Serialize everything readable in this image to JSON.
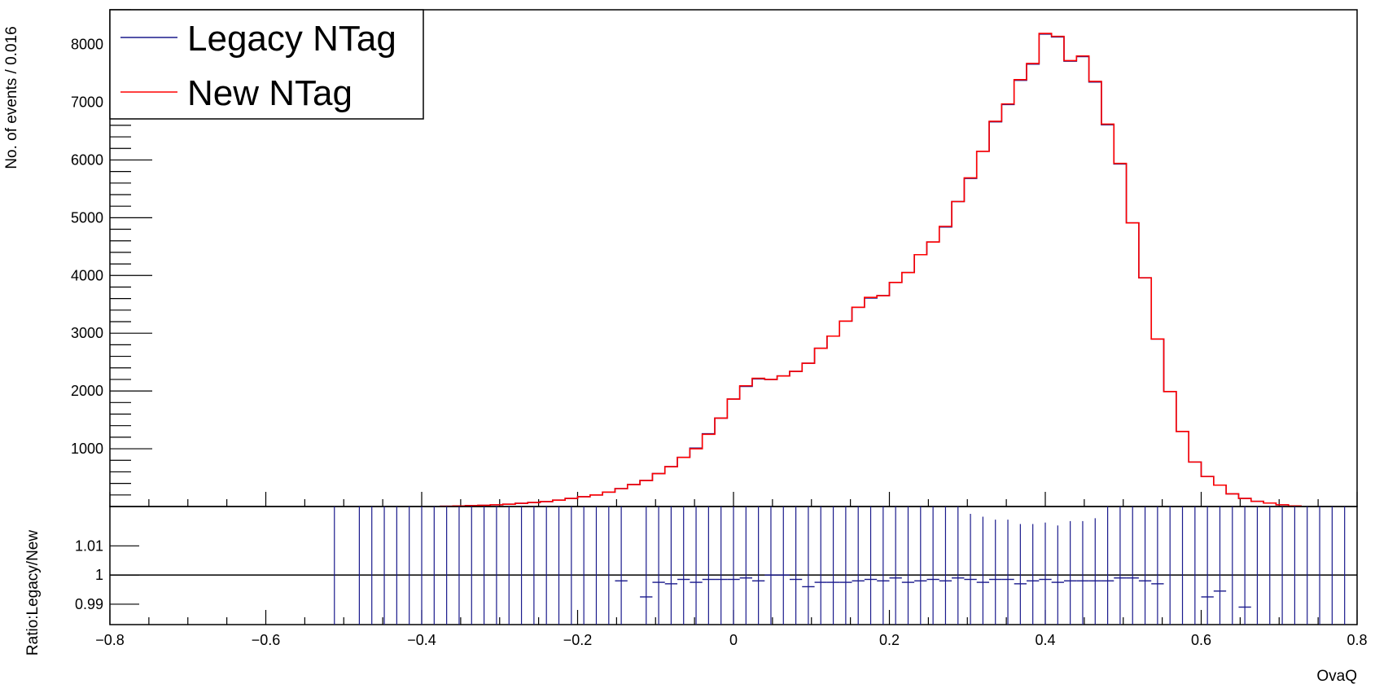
{
  "chart_data": [
    {
      "type": "line",
      "step": true,
      "ylabel": "No. of events / 0.016",
      "xlim": [
        -0.8,
        0.8
      ],
      "ylim": [
        0,
        8600
      ],
      "y_ticks": [
        1000,
        2000,
        3000,
        4000,
        5000,
        6000,
        7000,
        8000
      ],
      "bin_width": 0.016,
      "x": [
        -0.368,
        -0.352,
        -0.336,
        -0.32,
        -0.304,
        -0.288,
        -0.272,
        -0.256,
        -0.24,
        -0.224,
        -0.208,
        -0.192,
        -0.176,
        -0.16,
        -0.144,
        -0.128,
        -0.112,
        -0.096,
        -0.08,
        -0.064,
        -0.048,
        -0.032,
        -0.016,
        0.0,
        0.016,
        0.032,
        0.048,
        0.064,
        0.08,
        0.096,
        0.112,
        0.128,
        0.144,
        0.16,
        0.176,
        0.192,
        0.208,
        0.224,
        0.24,
        0.256,
        0.272,
        0.288,
        0.304,
        0.32,
        0.336,
        0.352,
        0.368,
        0.384,
        0.4,
        0.416,
        0.432,
        0.448,
        0.464,
        0.48,
        0.496,
        0.512,
        0.528,
        0.544,
        0.56,
        0.576,
        0.592,
        0.608,
        0.624,
        0.64,
        0.656,
        0.672,
        0.688,
        0.704,
        0.72
      ],
      "series": [
        {
          "name": "Legacy NTag",
          "color": "#1a1a8c",
          "values": [
            5,
            10,
            15,
            20,
            30,
            40,
            55,
            70,
            85,
            110,
            140,
            170,
            200,
            250,
            310,
            380,
            450,
            570,
            690,
            850,
            1010,
            1260,
            1530,
            1860,
            2080,
            2210,
            2200,
            2260,
            2340,
            2480,
            2740,
            2950,
            3210,
            3450,
            3610,
            3650,
            3880,
            4050,
            4360,
            4580,
            4840,
            5280,
            5680,
            6150,
            6660,
            6960,
            7380,
            7660,
            8180,
            8130,
            7710,
            7790,
            7350,
            6610,
            5930,
            4910,
            3960,
            2900,
            1990,
            1300,
            770,
            520,
            370,
            220,
            140,
            90,
            60,
            30,
            10
          ]
        },
        {
          "name": "New NTag",
          "color": "#ff0000",
          "values": [
            5,
            10,
            15,
            20,
            30,
            40,
            55,
            70,
            85,
            110,
            140,
            170,
            200,
            250,
            310,
            380,
            450,
            570,
            690,
            850,
            1000,
            1250,
            1530,
            1860,
            2090,
            2220,
            2200,
            2260,
            2340,
            2480,
            2740,
            2950,
            3210,
            3450,
            3620,
            3650,
            3880,
            4050,
            4360,
            4580,
            4850,
            5280,
            5690,
            6150,
            6670,
            6970,
            7390,
            7670,
            8190,
            8140,
            7720,
            7800,
            7360,
            6620,
            5940,
            4910,
            3960,
            2900,
            1990,
            1300,
            770,
            520,
            370,
            220,
            140,
            90,
            60,
            30,
            10
          ]
        }
      ]
    },
    {
      "type": "scatter",
      "xlabel": "OvaQ",
      "ylabel": "Ratio:Legacy/New",
      "xlim": [
        -0.8,
        0.8
      ],
      "ylim": [
        0.983,
        1.0235
      ],
      "y_ticks": [
        0.99,
        1,
        1.01
      ],
      "y_tick_labels": [
        "0.99",
        "1",
        "1.01"
      ],
      "x_ticks": [
        -0.8,
        -0.6,
        -0.4,
        -0.2,
        0,
        0.2,
        0.4,
        0.6,
        0.8
      ],
      "x_tick_labels": [
        "−0.8",
        "−0.6",
        "−0.4",
        "−0.2",
        "0",
        "0.2",
        "0.4",
        "0.6",
        "0.8"
      ],
      "reference_line": 1,
      "color": "#1a1a8c",
      "x": [
        -0.144,
        -0.112,
        -0.096,
        -0.08,
        -0.064,
        -0.048,
        -0.032,
        -0.016,
        0.0,
        0.016,
        0.032,
        0.048,
        0.064,
        0.08,
        0.096,
        0.112,
        0.128,
        0.144,
        0.16,
        0.176,
        0.192,
        0.208,
        0.224,
        0.24,
        0.256,
        0.272,
        0.288,
        0.304,
        0.32,
        0.336,
        0.352,
        0.368,
        0.384,
        0.4,
        0.416,
        0.432,
        0.448,
        0.464,
        0.48,
        0.496,
        0.512,
        0.528,
        0.544,
        0.608,
        0.624,
        0.656
      ],
      "values": [
        0.998,
        0.9925,
        0.9975,
        0.997,
        0.9985,
        0.9975,
        0.9985,
        0.9985,
        0.9985,
        0.999,
        0.998,
        1.0,
        1.0,
        0.9985,
        0.996,
        0.9975,
        0.9975,
        0.9975,
        0.998,
        0.9985,
        0.998,
        0.999,
        0.9975,
        0.998,
        0.9985,
        0.998,
        0.999,
        0.9985,
        0.9975,
        0.9985,
        0.9985,
        0.997,
        0.998,
        0.9985,
        0.9975,
        0.998,
        0.998,
        0.998,
        0.998,
        0.999,
        0.999,
        0.998,
        0.997,
        0.9925,
        0.9945,
        0.989
      ],
      "errors": [
        1,
        1,
        1,
        1,
        1,
        1,
        1,
        1,
        1,
        1,
        1,
        1,
        1,
        1,
        1,
        1,
        1,
        1,
        1,
        1,
        1,
        1,
        1,
        1,
        1,
        1,
        1,
        0.0225,
        0.0225,
        0.0205,
        0.0205,
        0.0205,
        0.0195,
        0.0195,
        0.0195,
        0.0205,
        0.0205,
        0.0215,
        1,
        1,
        1,
        1,
        1,
        1,
        1,
        1
      ],
      "unplotted_error_bins": [
        -0.512,
        -0.48,
        -0.464,
        -0.448,
        -0.432,
        -0.416,
        -0.4,
        -0.384,
        -0.368,
        -0.352,
        -0.336,
        -0.32,
        -0.304,
        -0.288,
        -0.272,
        -0.256,
        -0.24,
        -0.224,
        -0.208,
        -0.192,
        -0.176,
        -0.16,
        0.56,
        0.576,
        0.592,
        0.64,
        0.672,
        0.688,
        0.704,
        0.72,
        0.736,
        0.752,
        0.768,
        0.784
      ]
    }
  ],
  "legend": {
    "items": [
      {
        "label": "Legacy NTag",
        "color": "#1a1a8c"
      },
      {
        "label": "New NTag",
        "color": "#ff0000"
      }
    ]
  }
}
